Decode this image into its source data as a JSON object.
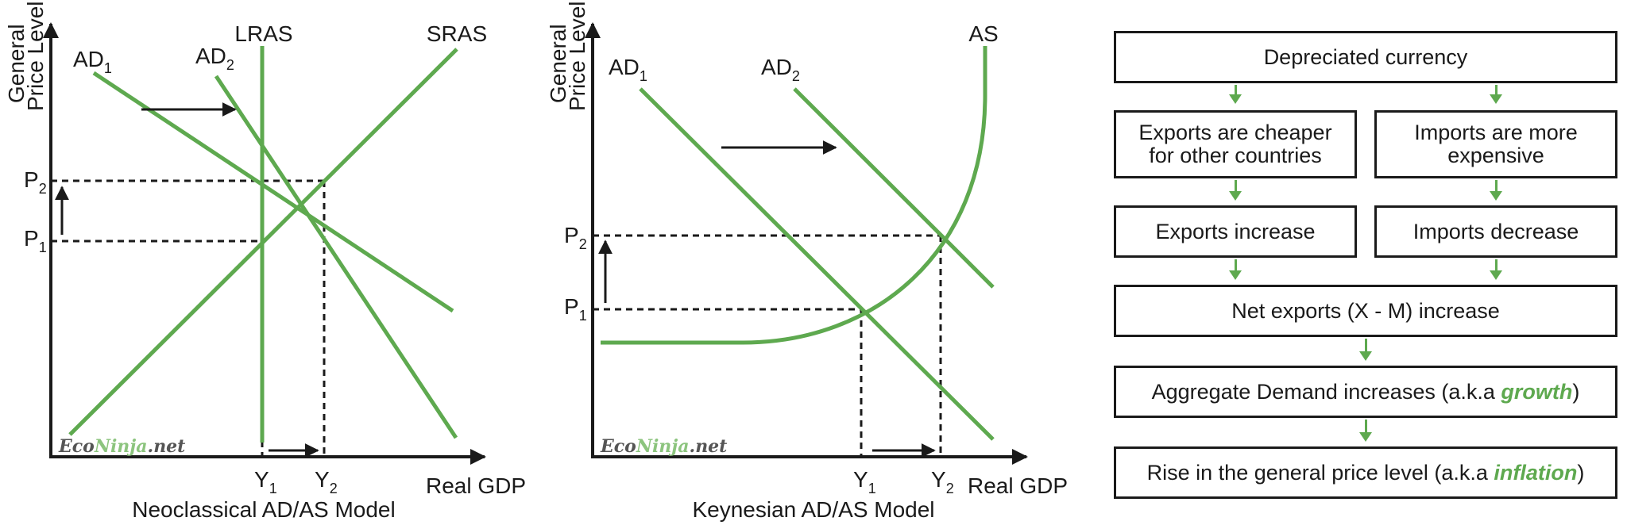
{
  "colors": {
    "curve": "#5ea94f",
    "ink": "#1a1a1a",
    "brand_dark": "#555555",
    "brand_green": "#8cc47e"
  },
  "brand": {
    "eco": "Eco",
    "ninja": "Ninja",
    "net": ".net"
  },
  "neoclassical": {
    "caption": "Neoclassical AD/AS Model",
    "y_axis": [
      "General",
      "Price Level"
    ],
    "x_axis": "Real GDP",
    "curves": {
      "lras": "LRAS",
      "sras": "SRAS",
      "ad1": "AD",
      "ad1_sub": "1",
      "ad2": "AD",
      "ad2_sub": "2"
    },
    "points": {
      "p1": "P",
      "p1_sub": "1",
      "p2": "P",
      "p2_sub": "2",
      "y1": "Y",
      "y1_sub": "1",
      "y2": "Y",
      "y2_sub": "2"
    }
  },
  "keynesian": {
    "caption": "Keynesian AD/AS Model",
    "y_axis": [
      "General",
      "Price Level"
    ],
    "x_axis": "Real GDP",
    "curves": {
      "as": "AS",
      "ad1": "AD",
      "ad1_sub": "1",
      "ad2": "AD",
      "ad2_sub": "2"
    },
    "points": {
      "p1": "P",
      "p1_sub": "1",
      "p2": "P",
      "p2_sub": "2",
      "y1": "Y",
      "y1_sub": "1",
      "y2": "Y",
      "y2_sub": "2"
    }
  },
  "flowchart": {
    "top": "Depreciated currency",
    "left1": "Exports are cheaper for other countries",
    "right1": "Imports are more expensive",
    "left2": "Exports increase",
    "right2": "Imports decrease",
    "net": "Net exports (X - M) increase",
    "ad": {
      "before": "Aggregate Demand increases (a.k.a ",
      "em": "growth",
      "after": ")"
    },
    "price": {
      "before": "Rise in the general price level (a.k.a ",
      "em": "inflation",
      "after": ")"
    }
  }
}
